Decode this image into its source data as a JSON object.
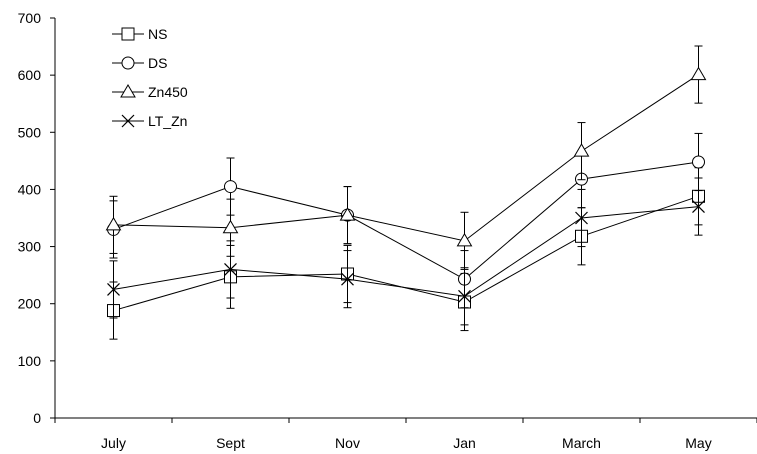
{
  "chart_data": {
    "type": "line",
    "title": "",
    "xlabel": "",
    "ylabel": "",
    "categories": [
      "July",
      "Sept",
      "Nov",
      "Jan",
      "March",
      "May"
    ],
    "ylim": [
      0,
      700
    ],
    "yticks": [
      0,
      100,
      200,
      300,
      400,
      500,
      600,
      700
    ],
    "grid": false,
    "legend_position": "top-left",
    "line_color": "#000000",
    "series": [
      {
        "name": "NS",
        "marker": "square",
        "values": [
          188,
          247,
          252,
          203,
          318,
          388
        ],
        "errors": [
          50,
          55,
          50,
          50,
          50,
          50
        ]
      },
      {
        "name": "DS",
        "marker": "circle",
        "values": [
          330,
          405,
          355,
          243,
          418,
          448
        ],
        "errors": [
          50,
          50,
          50,
          50,
          50,
          50
        ]
      },
      {
        "name": "Zn450",
        "marker": "triangle",
        "values": [
          338,
          333,
          355,
          310,
          467,
          601
        ],
        "errors": [
          50,
          50,
          50,
          50,
          50,
          50
        ]
      },
      {
        "name": "LT_Zn",
        "marker": "cross",
        "values": [
          225,
          260,
          243,
          213,
          350,
          370
        ],
        "errors": [
          50,
          50,
          50,
          50,
          50,
          50
        ]
      }
    ]
  }
}
